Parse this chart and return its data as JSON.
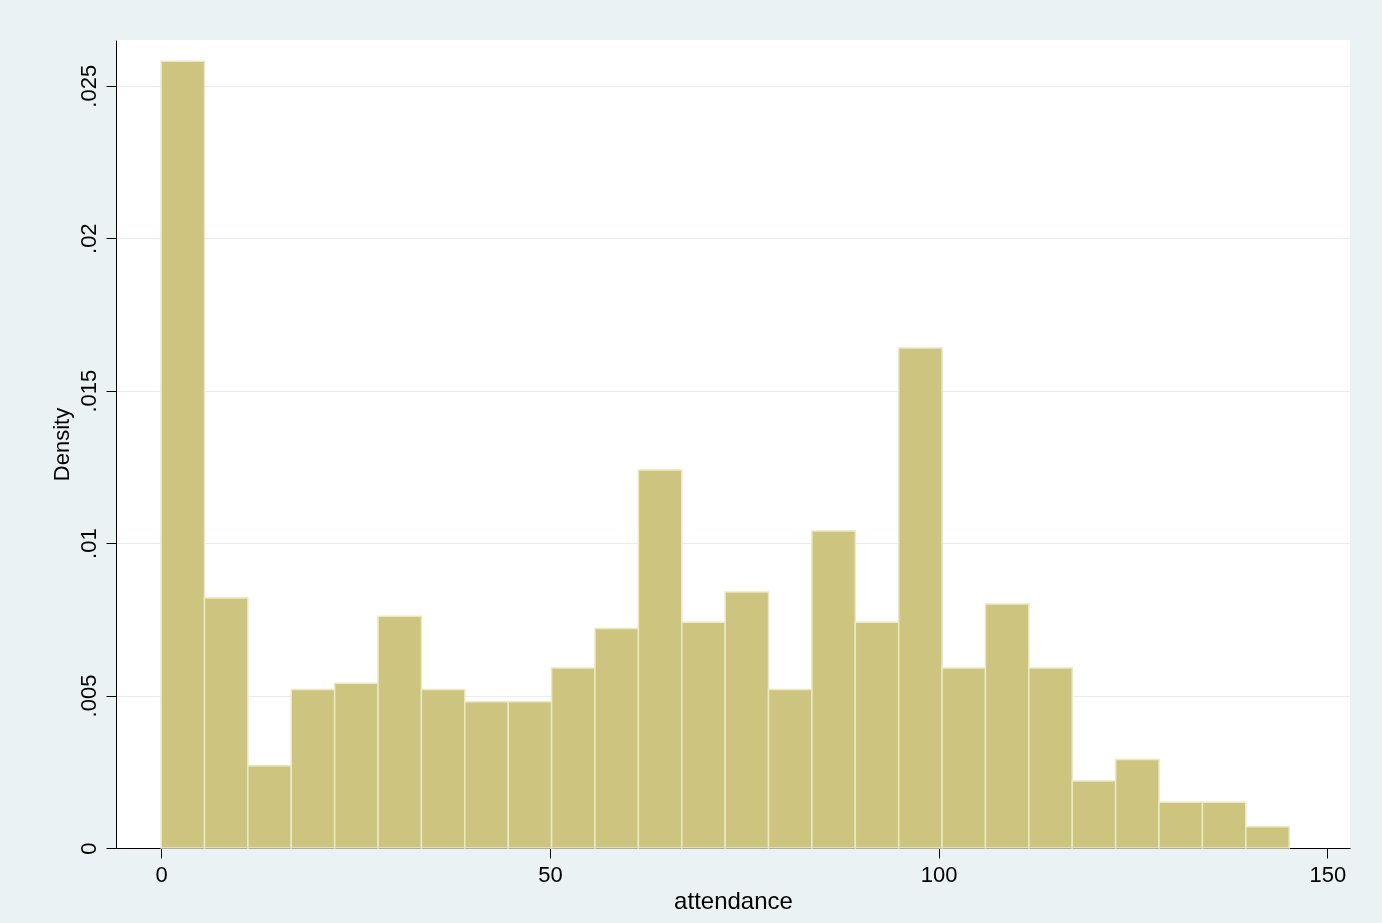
{
  "chart_data": {
    "type": "histogram",
    "xlabel": "attendance",
    "ylabel": "Density",
    "bins": [
      0,
      5.58,
      11.16,
      16.74,
      22.32,
      27.9,
      33.48,
      39.06,
      44.64,
      50.22,
      55.8,
      61.38,
      66.96,
      72.54,
      78.12,
      83.7,
      89.28,
      94.86,
      100.44,
      106.02,
      111.6,
      117.18,
      122.76,
      128.34,
      133.92,
      139.5,
      145.08
    ],
    "values": [
      0.0258,
      0.0082,
      0.0027,
      0.0052,
      0.0054,
      0.0076,
      0.0052,
      0.0048,
      0.0048,
      0.0059,
      0.0072,
      0.0124,
      0.0074,
      0.0084,
      0.0052,
      0.0104,
      0.0074,
      0.0164,
      0.0059,
      0.008,
      0.0059,
      0.0022,
      0.0029,
      0.0015,
      0.0015,
      0.0007
    ],
    "color": "#cdc47f",
    "xlim": [
      -5.8,
      152.9
    ],
    "xticks": [
      0,
      50,
      100,
      150
    ],
    "ylim": [
      0,
      0.0265
    ],
    "yticks": [
      0,
      {
        "value": 0.005,
        "label": ".005"
      },
      {
        "value": 0.01,
        "label": ".01"
      },
      {
        "value": 0.015,
        "label": ".015"
      },
      {
        "value": 0.02,
        "label": ".02"
      },
      {
        "value": 0.025,
        "label": ".025"
      }
    ],
    "grid": "y"
  }
}
